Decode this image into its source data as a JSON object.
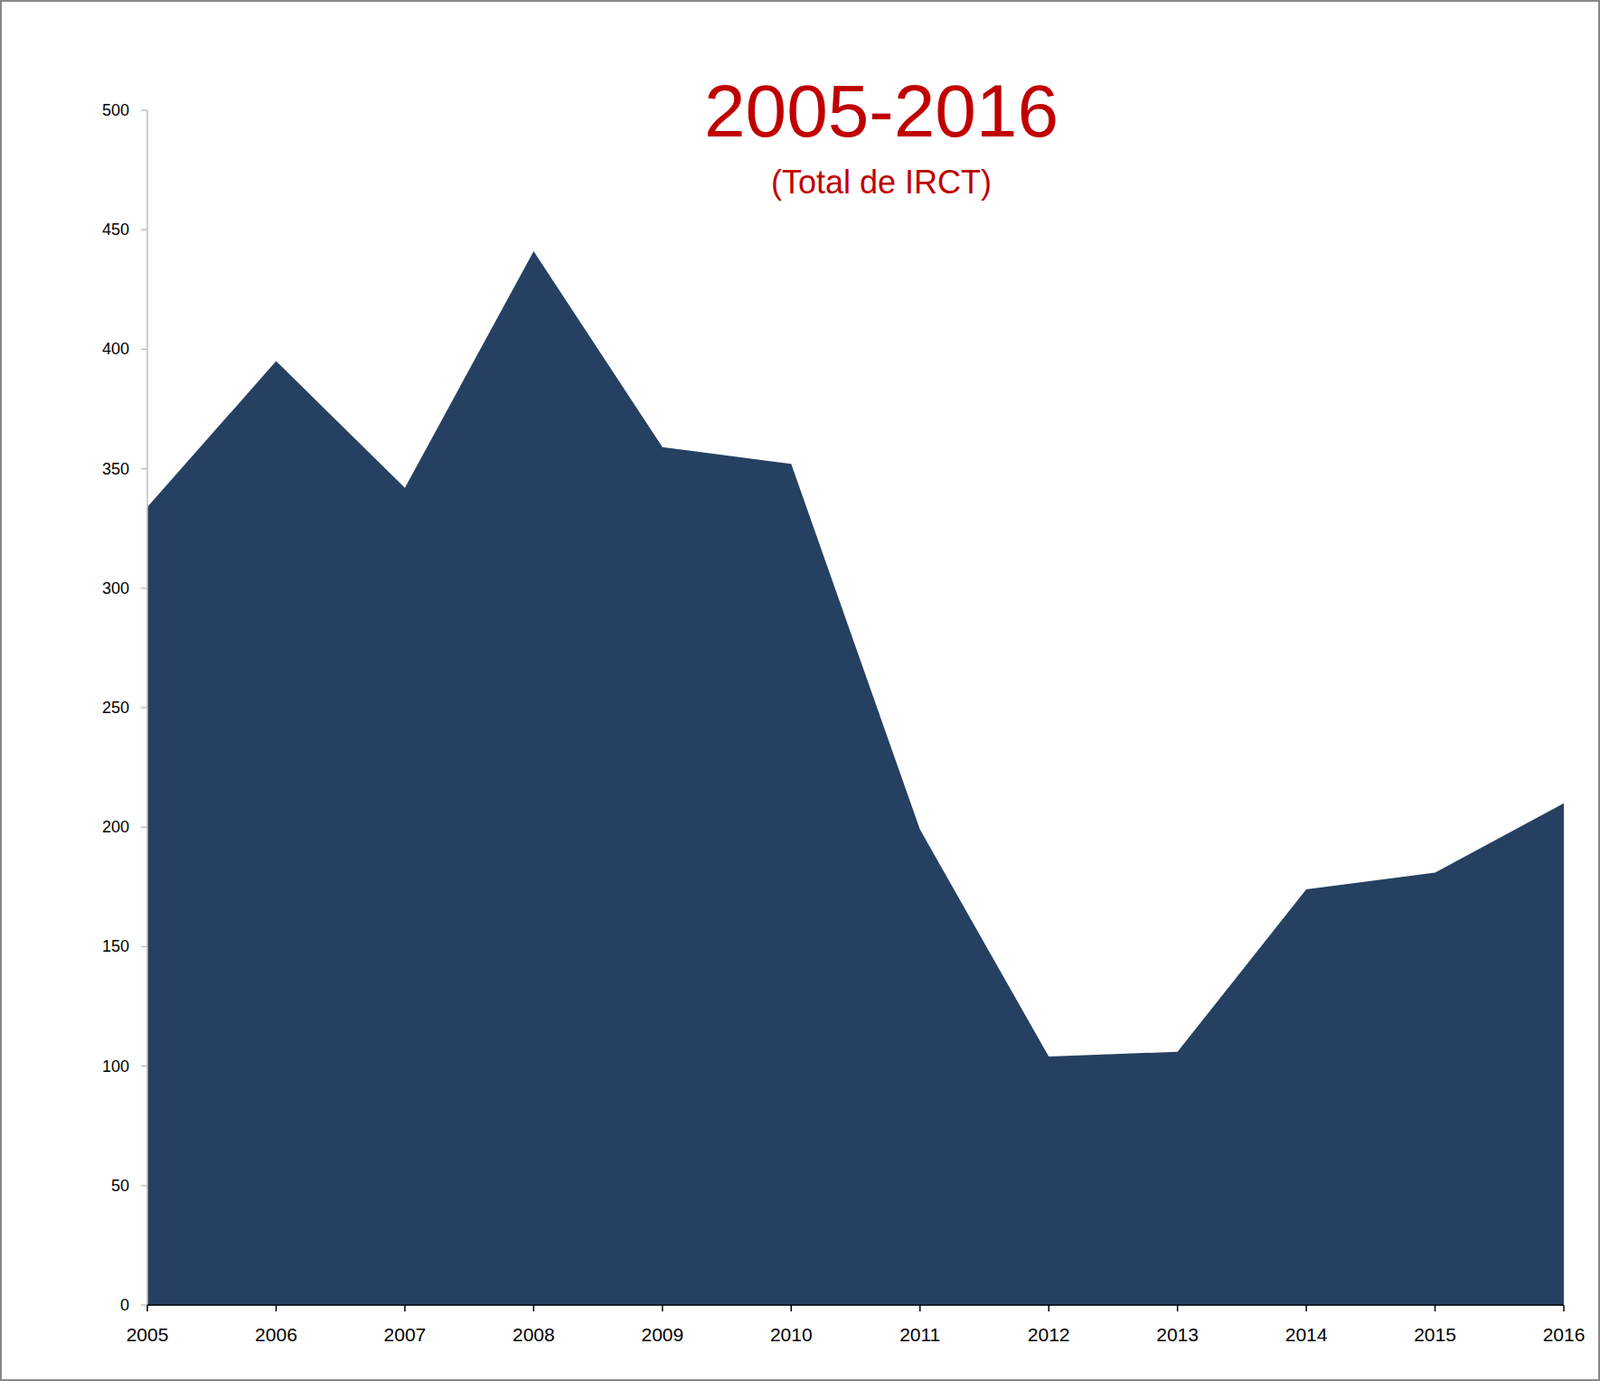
{
  "chart_data": {
    "type": "area",
    "title": "2005-2016",
    "subtitle": "(Total de IRCT)",
    "categories": [
      "2005",
      "2006",
      "2007",
      "2008",
      "2009",
      "2010",
      "2011",
      "2012",
      "2013",
      "2014",
      "2015",
      "2016"
    ],
    "values": [
      334,
      395,
      342,
      441,
      359,
      352,
      199,
      104,
      106,
      174,
      181,
      210
    ],
    "color": "#264061",
    "ylim": [
      0,
      500
    ],
    "yticks": [
      0,
      50,
      100,
      150,
      200,
      250,
      300,
      350,
      400,
      450,
      500
    ],
    "grid": false
  }
}
